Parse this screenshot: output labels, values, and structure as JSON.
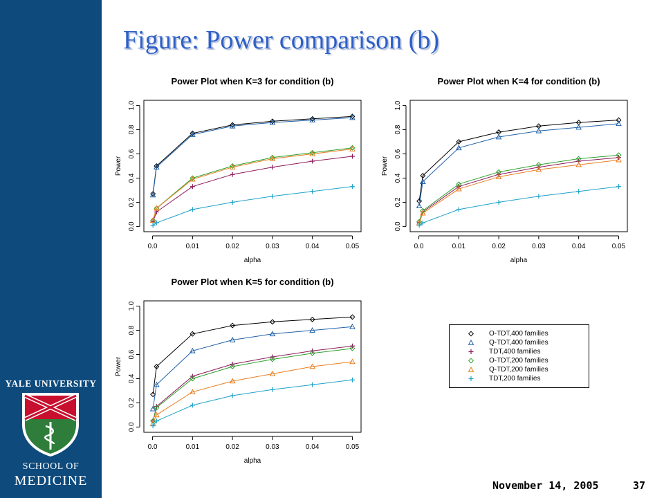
{
  "slide": {
    "title": "Figure: Power comparison (b)",
    "date": "November 14, 2005",
    "page": "37",
    "sidebar": {
      "university": "YALE UNIVERSITY",
      "school_line1": "SCHOOL OF",
      "school_line2": "MEDICINE",
      "shield_icon": "yale-medicine-shield-icon",
      "colors": {
        "sidebar_bg": "#0e4a7c",
        "shield_red": "#c8102e",
        "shield_green": "#2e7d3a"
      }
    }
  },
  "series_styles": {
    "O-TDT,400 families": {
      "color": "#000000",
      "marker": "diamond"
    },
    "Q-TDT,400 families": {
      "color": "#1f5fa8",
      "marker": "triangle"
    },
    "TDT,400 families": {
      "color": "#8b1a5a",
      "marker": "plus"
    },
    "O-TDT,200 families": {
      "color": "#2ea02e",
      "marker": "diamond"
    },
    "Q-TDT,200 families": {
      "color": "#e87d1e",
      "marker": "triangle"
    },
    "TDT,200 families": {
      "color": "#1fa1c8",
      "marker": "plus"
    }
  },
  "chart_data": [
    {
      "type": "line",
      "title": "Power Plot when K=3 for condition (b)",
      "xlabel": "alpha",
      "ylabel": "Power",
      "xlim": [
        0,
        0.05
      ],
      "ylim": [
        0,
        1
      ],
      "xticks": [
        "0.0",
        "0.01",
        "0.02",
        "0.03",
        "0.04",
        "0.05"
      ],
      "yticks": [
        "0.0",
        "0.2",
        "0.4",
        "0.6",
        "0.8",
        "1.0"
      ],
      "x": [
        0.0001,
        0.001,
        0.01,
        0.02,
        0.03,
        0.04,
        0.05
      ],
      "series": [
        {
          "name": "O-TDT,400 families",
          "values": [
            0.27,
            0.5,
            0.77,
            0.84,
            0.87,
            0.89,
            0.91
          ]
        },
        {
          "name": "Q-TDT,400 families",
          "values": [
            0.26,
            0.49,
            0.76,
            0.83,
            0.86,
            0.88,
            0.9
          ]
        },
        {
          "name": "TDT,400 families",
          "values": [
            0.04,
            0.12,
            0.33,
            0.43,
            0.49,
            0.54,
            0.58
          ]
        },
        {
          "name": "O-TDT,200 families",
          "values": [
            0.05,
            0.15,
            0.4,
            0.5,
            0.57,
            0.61,
            0.65
          ]
        },
        {
          "name": "Q-TDT,200 families",
          "values": [
            0.05,
            0.15,
            0.39,
            0.49,
            0.56,
            0.6,
            0.64
          ]
        },
        {
          "name": "TDT,200 families",
          "values": [
            0.01,
            0.03,
            0.14,
            0.2,
            0.25,
            0.29,
            0.33
          ]
        }
      ]
    },
    {
      "type": "line",
      "title": "Power Plot when K=4 for condition (b)",
      "xlabel": "alpha",
      "ylabel": "Power",
      "xlim": [
        0,
        0.05
      ],
      "ylim": [
        0,
        1
      ],
      "xticks": [
        "0.0",
        "0.01",
        "0.02",
        "0.03",
        "0.04",
        "0.05"
      ],
      "yticks": [
        "0.0",
        "0.2",
        "0.4",
        "0.6",
        "0.8",
        "1.0"
      ],
      "x": [
        0.0001,
        0.001,
        0.01,
        0.02,
        0.03,
        0.04,
        0.05
      ],
      "series": [
        {
          "name": "O-TDT,400 families",
          "values": [
            0.21,
            0.42,
            0.7,
            0.78,
            0.83,
            0.86,
            0.88
          ]
        },
        {
          "name": "Q-TDT,400 families",
          "values": [
            0.17,
            0.37,
            0.65,
            0.74,
            0.79,
            0.82,
            0.85
          ]
        },
        {
          "name": "TDT,400 families",
          "values": [
            0.03,
            0.12,
            0.33,
            0.43,
            0.49,
            0.54,
            0.57
          ]
        },
        {
          "name": "O-TDT,200 families",
          "values": [
            0.04,
            0.13,
            0.35,
            0.45,
            0.51,
            0.56,
            0.59
          ]
        },
        {
          "name": "Q-TDT,200 families",
          "values": [
            0.03,
            0.11,
            0.31,
            0.41,
            0.47,
            0.51,
            0.55
          ]
        },
        {
          "name": "TDT,200 families",
          "values": [
            0.01,
            0.03,
            0.14,
            0.2,
            0.25,
            0.29,
            0.33
          ]
        }
      ]
    },
    {
      "type": "line",
      "title": "Power Plot when K=5 for condition (b)",
      "xlabel": "alpha",
      "ylabel": "Power",
      "xlim": [
        0,
        0.05
      ],
      "ylim": [
        0,
        1
      ],
      "xticks": [
        "0.0",
        "0.01",
        "0.02",
        "0.03",
        "0.04",
        "0.05"
      ],
      "yticks": [
        "0.0",
        "0.2",
        "0.4",
        "0.6",
        "0.8",
        "1.0"
      ],
      "x": [
        0.0001,
        0.001,
        0.01,
        0.02,
        0.03,
        0.04,
        0.05
      ],
      "series": [
        {
          "name": "O-TDT,400 families",
          "values": [
            0.27,
            0.5,
            0.77,
            0.84,
            0.87,
            0.89,
            0.91
          ]
        },
        {
          "name": "Q-TDT,400 families",
          "values": [
            0.15,
            0.35,
            0.63,
            0.72,
            0.77,
            0.8,
            0.83
          ]
        },
        {
          "name": "TDT,400 families",
          "values": [
            0.05,
            0.17,
            0.42,
            0.52,
            0.58,
            0.63,
            0.67
          ]
        },
        {
          "name": "O-TDT,200 families",
          "values": [
            0.05,
            0.16,
            0.4,
            0.5,
            0.56,
            0.61,
            0.65
          ]
        },
        {
          "name": "Q-TDT,200 families",
          "values": [
            0.03,
            0.1,
            0.29,
            0.38,
            0.44,
            0.5,
            0.54
          ]
        },
        {
          "name": "TDT,200 families",
          "values": [
            0.01,
            0.05,
            0.18,
            0.26,
            0.31,
            0.35,
            0.39
          ]
        }
      ]
    }
  ],
  "legend": {
    "entries": [
      "O-TDT,400 families",
      "Q-TDT,400 families",
      "TDT,400 families",
      "O-TDT,200 families",
      "Q-TDT,200 families",
      "TDT,200 families"
    ]
  }
}
